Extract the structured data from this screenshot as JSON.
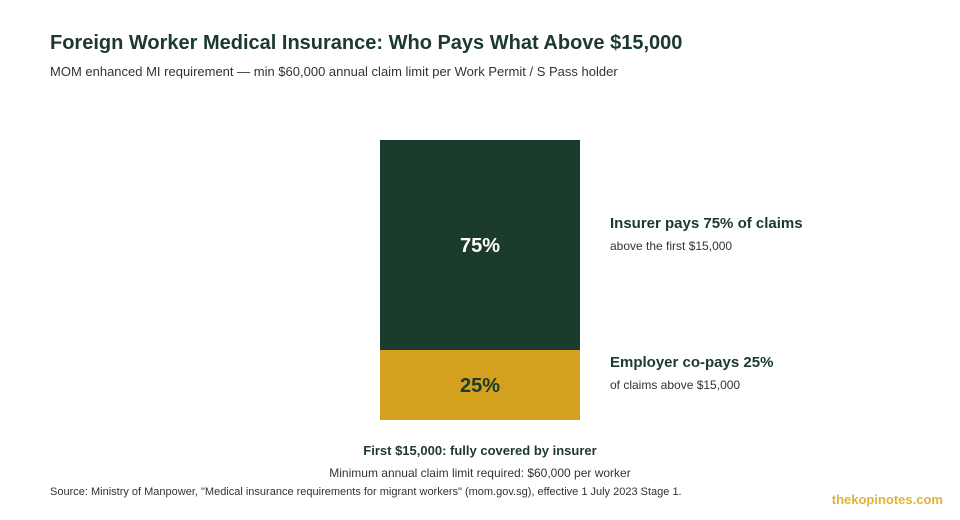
{
  "colors": {
    "insurer": "#1b3b2c",
    "employer": "#d4a11e",
    "brand": "#e0b43a"
  },
  "footer": {
    "first_tier": "First $15,000: fully covered by insurer",
    "minimum": "Minimum annual claim limit required: $60,000 per worker",
    "source": "Source: Ministry of Manpower, \"Medical insurance requirements for migrant workers\" (mom.gov.sg), effective 1 July 2023 Stage 1.",
    "brand": "thekopinotes.com"
  },
  "chart_data": {
    "type": "bar",
    "stacked": true,
    "title": "Foreign Worker Medical Insurance: Who Pays What Above $15,000",
    "subtitle": "MOM enhanced MI requirement — min $60,000 annual claim limit per Work Permit / S Pass holder",
    "unit": "%",
    "segments": [
      {
        "name": "Insurer",
        "value": 75,
        "label": "75%",
        "legend_title": "Insurer pays 75% of claims",
        "legend_sub": "above the first $15,000",
        "color": "#1b3b2c",
        "text_color": "#ffffff"
      },
      {
        "name": "Employer",
        "value": 25,
        "label": "25%",
        "legend_title": "Employer co-pays 25%",
        "legend_sub": "of claims above $15,000",
        "color": "#d4a11e",
        "text_color": "#1b3a2b"
      }
    ],
    "legend_position": "right",
    "grid": false
  }
}
